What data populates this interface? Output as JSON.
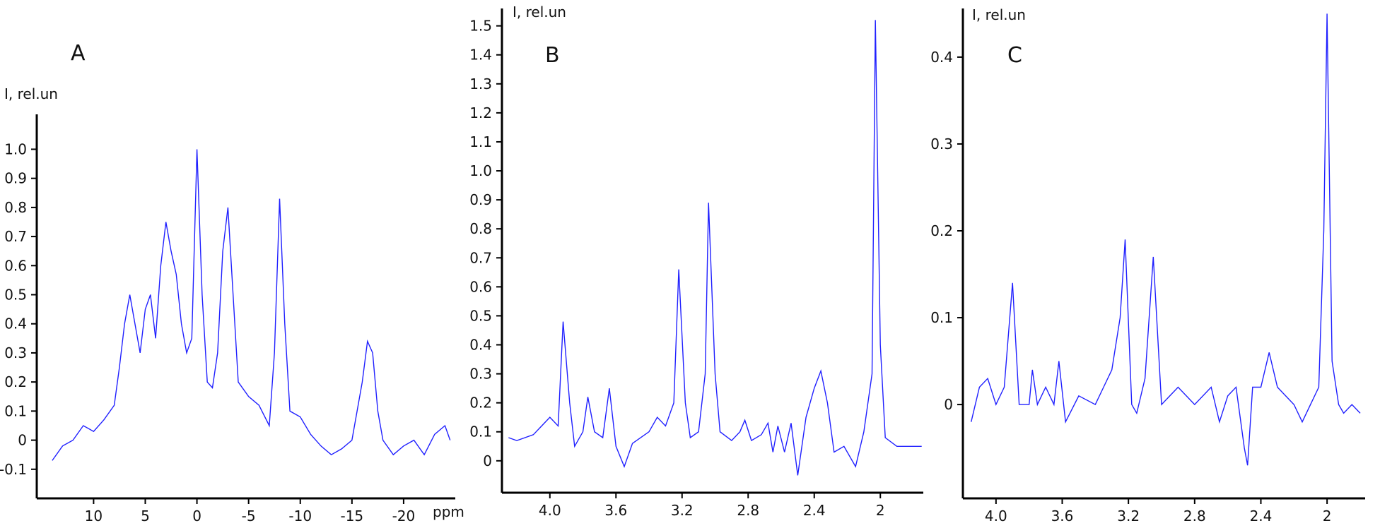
{
  "chart_data": [
    {
      "type": "line",
      "panel_label": "A",
      "y_label": "I, rel.un",
      "x_label": "ppm",
      "color": "#2020ff",
      "xlim": [
        15.5,
        -25
      ],
      "xticks": [
        10,
        5,
        0,
        -5,
        -10,
        -15,
        -20
      ],
      "ylim": [
        -0.2,
        1.12
      ],
      "yticks": [
        -0.1,
        0,
        0.1,
        0.2,
        0.3,
        0.4,
        0.5,
        0.6,
        0.7,
        0.8,
        0.9,
        {
          "value": 1,
          "label": "1.0"
        }
      ],
      "x": [
        14,
        13,
        12,
        11,
        10,
        9,
        8,
        7.5,
        7,
        6.5,
        6,
        5.5,
        5,
        4.5,
        4,
        3.5,
        3,
        2.5,
        2,
        1.5,
        1,
        0.5,
        0,
        -0.5,
        -1,
        -1.5,
        -2,
        -2.5,
        -3,
        -3.5,
        -4,
        -5,
        -6,
        -7,
        -7.5,
        -8,
        -8.5,
        -9,
        -10,
        -11,
        -12,
        -13,
        -14,
        -15,
        -16,
        -16.5,
        -17,
        -17.5,
        -18,
        -19,
        -20,
        -21,
        -22,
        -23,
        -24,
        -24.5
      ],
      "values": [
        -0.07,
        -0.02,
        0.0,
        0.05,
        0.03,
        0.07,
        0.12,
        0.25,
        0.4,
        0.5,
        0.4,
        0.3,
        0.45,
        0.5,
        0.35,
        0.6,
        0.75,
        0.65,
        0.57,
        0.4,
        0.3,
        0.35,
        1.0,
        0.5,
        0.2,
        0.18,
        0.3,
        0.65,
        0.8,
        0.5,
        0.2,
        0.15,
        0.12,
        0.05,
        0.3,
        0.83,
        0.4,
        0.1,
        0.08,
        0.02,
        -0.02,
        -0.05,
        -0.03,
        0.0,
        0.2,
        0.34,
        0.3,
        0.1,
        0.0,
        -0.05,
        -0.02,
        0.0,
        -0.05,
        0.02,
        0.05,
        0.0
      ]
    },
    {
      "type": "line",
      "panel_label": "B",
      "y_label": "I, rel.un",
      "color": "#2020ff",
      "xlim": [
        4.29,
        1.74
      ],
      "xticks": [
        {
          "value": 4,
          "label": "4.0"
        },
        3.6,
        3.2,
        2.8,
        2.4,
        2
      ],
      "ylim": [
        -0.11,
        1.56
      ],
      "yticks": [
        0,
        0.1,
        0.2,
        0.3,
        0.4,
        0.5,
        0.6,
        0.7,
        0.8,
        0.9,
        {
          "value": 1,
          "label": "1.0"
        },
        1.1,
        1.2,
        1.3,
        1.4,
        1.5
      ],
      "x": [
        4.25,
        4.2,
        4.1,
        4.0,
        3.95,
        3.92,
        3.88,
        3.85,
        3.8,
        3.77,
        3.73,
        3.68,
        3.64,
        3.6,
        3.55,
        3.5,
        3.4,
        3.35,
        3.3,
        3.25,
        3.22,
        3.18,
        3.15,
        3.1,
        3.06,
        3.04,
        3.0,
        2.97,
        2.9,
        2.85,
        2.82,
        2.78,
        2.72,
        2.68,
        2.65,
        2.62,
        2.58,
        2.54,
        2.5,
        2.45,
        2.4,
        2.36,
        2.32,
        2.28,
        2.22,
        2.15,
        2.1,
        2.05,
        2.03,
        2.0,
        1.97,
        1.9,
        1.8,
        1.75
      ],
      "values": [
        0.08,
        0.07,
        0.09,
        0.15,
        0.12,
        0.48,
        0.2,
        0.05,
        0.1,
        0.22,
        0.1,
        0.08,
        0.25,
        0.05,
        -0.02,
        0.06,
        0.1,
        0.15,
        0.12,
        0.2,
        0.66,
        0.2,
        0.08,
        0.1,
        0.3,
        0.89,
        0.3,
        0.1,
        0.07,
        0.1,
        0.14,
        0.07,
        0.09,
        0.13,
        0.03,
        0.12,
        0.03,
        0.13,
        -0.05,
        0.15,
        0.25,
        0.31,
        0.2,
        0.03,
        0.05,
        -0.02,
        0.1,
        0.3,
        1.52,
        0.4,
        0.08,
        0.05,
        0.05,
        0.05
      ]
    },
    {
      "type": "line",
      "panel_label": "C",
      "y_label": "I, rel.un",
      "color": "#2020ff",
      "xlim": [
        4.2,
        1.77
      ],
      "xticks": [
        {
          "value": 4,
          "label": "4.0"
        },
        3.6,
        3.2,
        2.8,
        2.4,
        2
      ],
      "ylim": [
        -0.108,
        0.456
      ],
      "yticks": [
        0,
        0.1,
        0.2,
        0.3,
        0.4
      ],
      "x": [
        4.15,
        4.1,
        4.05,
        4.0,
        3.95,
        3.9,
        3.86,
        3.8,
        3.78,
        3.75,
        3.7,
        3.65,
        3.62,
        3.58,
        3.5,
        3.4,
        3.35,
        3.3,
        3.25,
        3.22,
        3.18,
        3.15,
        3.1,
        3.05,
        3.0,
        2.9,
        2.8,
        2.7,
        2.65,
        2.6,
        2.55,
        2.5,
        2.48,
        2.45,
        2.4,
        2.35,
        2.3,
        2.2,
        2.15,
        2.1,
        2.05,
        2.02,
        2.0,
        1.97,
        1.93,
        1.9,
        1.85,
        1.8
      ],
      "values": [
        -0.02,
        0.02,
        0.03,
        0.0,
        0.02,
        0.14,
        0.0,
        0.0,
        0.04,
        0.0,
        0.02,
        0.0,
        0.05,
        -0.02,
        0.01,
        0.0,
        0.02,
        0.04,
        0.1,
        0.19,
        0.0,
        -0.01,
        0.03,
        0.17,
        0.0,
        0.02,
        0.0,
        0.02,
        -0.02,
        0.01,
        0.02,
        -0.05,
        -0.07,
        0.02,
        0.02,
        0.06,
        0.02,
        0.0,
        -0.02,
        0.0,
        0.02,
        0.2,
        0.45,
        0.05,
        0.0,
        -0.01,
        0.0,
        -0.01
      ]
    }
  ]
}
